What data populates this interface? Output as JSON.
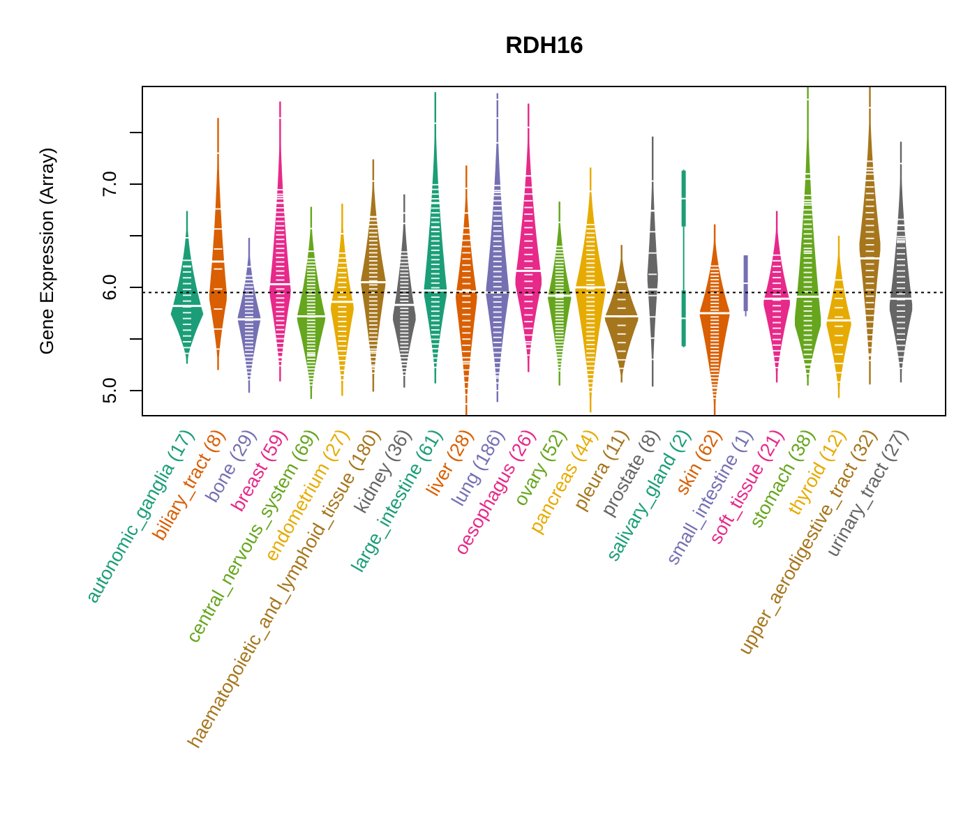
{
  "chart_data": {
    "type": "beanplot",
    "title": "RDH16",
    "xlabel": "",
    "ylabel": "Gene Expression (Array)",
    "ylim": [
      4.76,
      7.95
    ],
    "yticks": [
      5.0,
      5.5,
      6.0,
      6.5,
      7.0,
      7.5
    ],
    "ytick_labels": [
      "5.0",
      "",
      "6.0",
      "",
      "7.0",
      ""
    ],
    "reference_line": 5.95,
    "grid": false,
    "palette": [
      "#1b9e77",
      "#d95f02",
      "#7570b3",
      "#e7298a",
      "#66a61e",
      "#e6ab02",
      "#a6761d",
      "#666666"
    ],
    "categories": [
      {
        "name": "autonomic_ganglia",
        "n": 17,
        "label": "autonomic_ganglia (17)",
        "min": 5.26,
        "max": 6.74,
        "median": 5.82,
        "mode": 5.74,
        "width": 0.9,
        "outliers": [
          6.48,
          6.2
        ]
      },
      {
        "name": "biliary_tract",
        "n": 8,
        "label": "biliary_tract (8)",
        "min": 5.2,
        "max": 7.64,
        "median": 6.25,
        "mode": 5.9,
        "width": 0.5,
        "outliers": [
          7.3
        ]
      },
      {
        "name": "bone",
        "n": 29,
        "label": "bone (29)",
        "min": 4.98,
        "max": 6.48,
        "median": 5.69,
        "mode": 5.7,
        "width": 0.65,
        "outliers": [
          6.2
        ]
      },
      {
        "name": "breast",
        "n": 59,
        "label": "breast (59)",
        "min": 5.09,
        "max": 7.8,
        "median": 6.03,
        "mode": 5.95,
        "width": 0.6,
        "outliers": [
          7.64,
          6.88,
          6.82,
          5.32
        ]
      },
      {
        "name": "central_nervous_system",
        "n": 69,
        "label": "central_nervous_system (69)",
        "min": 4.92,
        "max": 6.78,
        "median": 5.72,
        "mode": 5.7,
        "width": 0.8,
        "outliers": [
          6.57,
          6.35,
          5.35
        ]
      },
      {
        "name": "endometrium",
        "n": 27,
        "label": "endometrium (27)",
        "min": 4.95,
        "max": 6.81,
        "median": 5.86,
        "mode": 5.8,
        "width": 0.65,
        "outliers": [
          6.52,
          5.15
        ]
      },
      {
        "name": "haematopoietic_and_lymphoid_tissue",
        "n": 180,
        "label": "haematopoietic_and_lymphoid_tissue (180)",
        "min": 4.99,
        "max": 7.24,
        "median": 6.05,
        "mode": 6.05,
        "width": 0.7,
        "outliers": [
          7.03,
          6.68,
          5.38,
          5.23
        ]
      },
      {
        "name": "kidney",
        "n": 36,
        "label": "kidney (36)",
        "min": 5.03,
        "max": 6.9,
        "median": 5.83,
        "mode": 5.7,
        "width": 0.65,
        "outliers": [
          6.72,
          6.62,
          5.28
        ]
      },
      {
        "name": "large_intestine",
        "n": 61,
        "label": "large_intestine (61)",
        "min": 5.07,
        "max": 7.89,
        "median": 5.97,
        "mode": 5.95,
        "width": 0.65,
        "outliers": [
          7.59,
          6.82,
          6.58
        ]
      },
      {
        "name": "liver",
        "n": 28,
        "label": "liver (28)",
        "min": 4.76,
        "max": 7.18,
        "median": 5.96,
        "mode": 5.9,
        "width": 0.6,
        "outliers": [
          6.96,
          6.72,
          5.28,
          4.87
        ]
      },
      {
        "name": "lung",
        "n": 186,
        "label": "lung (186)",
        "min": 4.89,
        "max": 7.88,
        "median": 5.95,
        "mode": 5.95,
        "width": 0.65,
        "outliers": [
          7.82,
          7.64,
          7.4,
          6.92,
          5.14,
          5.0
        ]
      },
      {
        "name": "oesophagus",
        "n": 26,
        "label": "oesophagus (26)",
        "min": 5.18,
        "max": 7.78,
        "median": 6.16,
        "mode": 6.05,
        "width": 0.75,
        "outliers": [
          7.55,
          7.08,
          5.45
        ]
      },
      {
        "name": "ovary",
        "n": 52,
        "label": "ovary (52)",
        "min": 5.05,
        "max": 6.83,
        "median": 5.92,
        "mode": 5.9,
        "width": 0.65,
        "outliers": [
          6.63,
          5.32
        ]
      },
      {
        "name": "pancreas",
        "n": 44,
        "label": "pancreas (44)",
        "min": 4.79,
        "max": 7.16,
        "median": 6.0,
        "mode": 5.98,
        "width": 0.85,
        "outliers": [
          6.93,
          5.03
        ]
      },
      {
        "name": "pleura",
        "n": 11,
        "label": "pleura (11)",
        "min": 5.08,
        "max": 6.41,
        "median": 5.72,
        "mode": 5.7,
        "width": 0.95,
        "outliers": []
      },
      {
        "name": "prostate",
        "n": 8,
        "label": "prostate (8)",
        "min": 5.04,
        "max": 7.46,
        "median": 5.98,
        "mode": 6.1,
        "width": 0.3,
        "outliers": [
          7.03,
          6.74
        ]
      },
      {
        "name": "salivary_gland",
        "n": 2,
        "label": "salivary_gland (2)",
        "min": 5.42,
        "max": 7.14,
        "median": 6.28,
        "mode": 6.86,
        "width": 0.15,
        "points": [
          6.86,
          5.7
        ]
      },
      {
        "name": "skin",
        "n": 62,
        "label": "skin (62)",
        "min": 4.76,
        "max": 6.61,
        "median": 5.75,
        "mode": 5.75,
        "width": 0.85,
        "outliers": [
          5.03
        ]
      },
      {
        "name": "small_intestine",
        "n": 1,
        "label": "small_intestine (1)",
        "min": 5.72,
        "max": 6.31,
        "median": 6.04,
        "mode": 6.04,
        "width": 0.15,
        "points": [
          6.04
        ]
      },
      {
        "name": "soft_tissue",
        "n": 21,
        "label": "soft_tissue (21)",
        "min": 5.08,
        "max": 6.74,
        "median": 5.89,
        "mode": 5.85,
        "width": 0.75,
        "outliers": []
      },
      {
        "name": "stomach",
        "n": 38,
        "label": "stomach (38)",
        "min": 5.05,
        "max": 7.95,
        "median": 5.91,
        "mode": 5.65,
        "width": 0.75,
        "outliers": [
          7.82,
          7.1,
          7.05,
          6.82,
          6.35,
          5.25
        ]
      },
      {
        "name": "thyroid",
        "n": 12,
        "label": "thyroid (12)",
        "min": 4.93,
        "max": 6.5,
        "median": 5.68,
        "mode": 5.65,
        "width": 0.7,
        "outliers": []
      },
      {
        "name": "upper_aerodigestive_tract",
        "n": 32,
        "label": "upper_aerodigestive_tract (32)",
        "min": 5.06,
        "max": 7.95,
        "median": 6.28,
        "mode": 6.4,
        "width": 0.6,
        "outliers": [
          7.74,
          7.13,
          5.34
        ]
      },
      {
        "name": "urinary_tract",
        "n": 27,
        "label": "urinary_tract (27)",
        "min": 5.08,
        "max": 7.41,
        "median": 5.89,
        "mode": 5.8,
        "width": 0.65,
        "outliers": [
          7.2,
          6.6,
          6.47,
          6.45
        ]
      }
    ]
  }
}
